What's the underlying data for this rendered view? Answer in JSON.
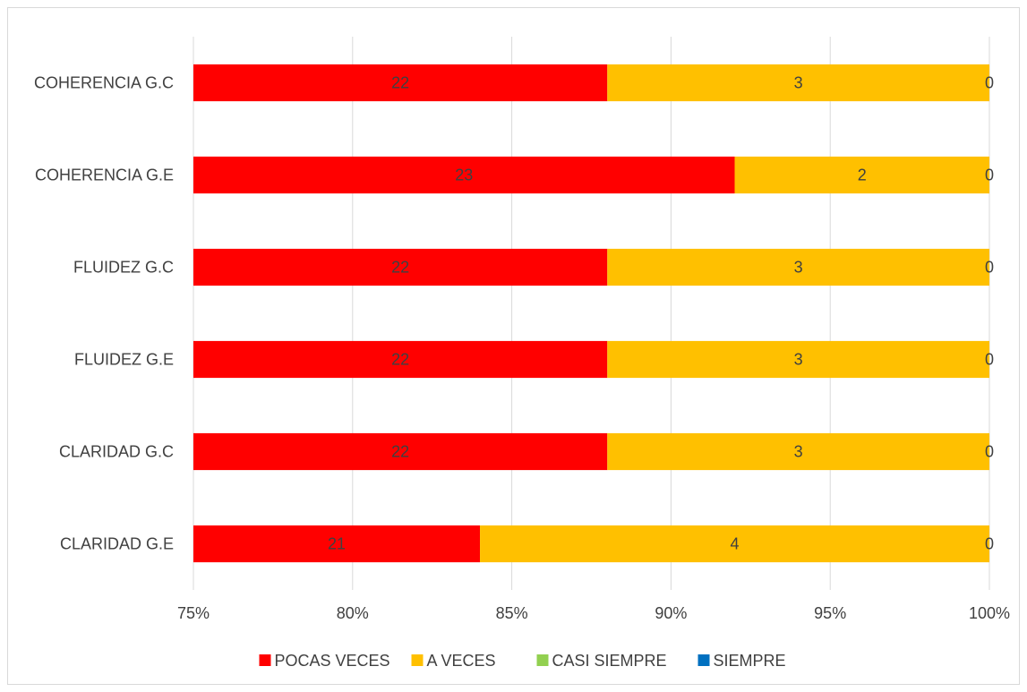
{
  "chart_data": {
    "type": "bar",
    "orientation": "horizontal",
    "stacked": "percent",
    "categories": [
      "COHERENCIA G.C",
      "COHERENCIA G.E",
      "FLUIDEZ  G.C",
      "FLUIDEZ   G.E",
      "CLARIDAD G.C",
      "CLARIDAD G.E"
    ],
    "series": [
      {
        "name": "POCAS VECES",
        "color": "#ff0000",
        "values": [
          22,
          23,
          22,
          22,
          22,
          21
        ]
      },
      {
        "name": "A VECES",
        "color": "#ffc000",
        "values": [
          3,
          2,
          3,
          3,
          3,
          4
        ]
      },
      {
        "name": "CASI SIEMPRE",
        "color": "#92d050",
        "values": [
          0,
          0,
          0,
          0,
          0,
          0
        ]
      },
      {
        "name": "SIEMPRE",
        "color": "#0070c0",
        "values": [
          0,
          0,
          0,
          0,
          0,
          0
        ]
      }
    ],
    "data_labels": [
      [
        "22",
        "3",
        "0"
      ],
      [
        "23",
        "2",
        "0"
      ],
      [
        "22",
        "3",
        "0"
      ],
      [
        "22",
        "3",
        "0"
      ],
      [
        "22",
        "3",
        "0"
      ],
      [
        "21",
        "4",
        "0"
      ]
    ],
    "xlim": [
      0.75,
      1.0
    ],
    "xticks": [
      0.75,
      0.8,
      0.85,
      0.9,
      0.95,
      1.0
    ],
    "xtick_labels": [
      "75%",
      "80%",
      "85%",
      "90%",
      "95%",
      "100%"
    ],
    "grid": true,
    "legend_position": "bottom",
    "title": "",
    "xlabel": "",
    "ylabel": ""
  }
}
